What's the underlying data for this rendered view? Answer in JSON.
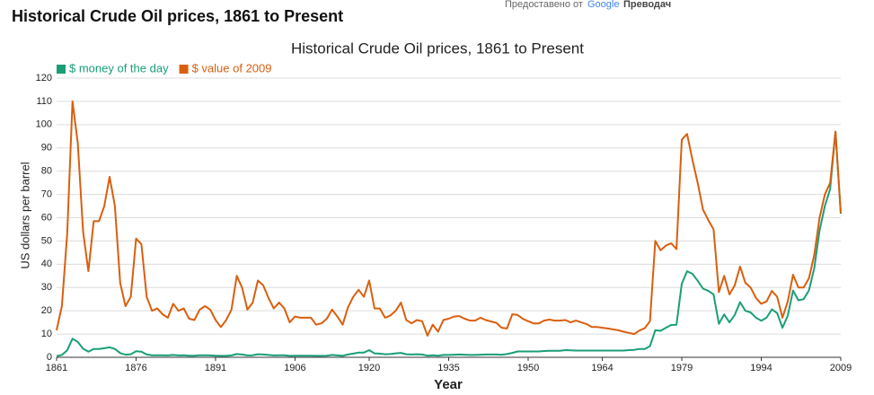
{
  "header": {
    "title": "Historical Crude Oil prices, 1861 to Present",
    "translate_prefix": "Предоставено от",
    "translate_brand": "Google",
    "translate_product": "Преводач"
  },
  "chart_data": {
    "type": "line",
    "title": "Historical Crude Oil prices, 1861 to Present",
    "x_label": "Year",
    "y_label": "US dollars per barrel",
    "x": [
      1861,
      1862,
      1863,
      1864,
      1865,
      1866,
      1867,
      1868,
      1869,
      1870,
      1871,
      1872,
      1873,
      1874,
      1875,
      1876,
      1877,
      1878,
      1879,
      1880,
      1881,
      1882,
      1883,
      1884,
      1885,
      1886,
      1887,
      1888,
      1889,
      1890,
      1891,
      1892,
      1893,
      1894,
      1895,
      1896,
      1897,
      1898,
      1899,
      1900,
      1901,
      1902,
      1903,
      1904,
      1905,
      1906,
      1907,
      1908,
      1909,
      1910,
      1911,
      1912,
      1913,
      1914,
      1915,
      1916,
      1917,
      1918,
      1919,
      1920,
      1921,
      1922,
      1923,
      1924,
      1925,
      1926,
      1927,
      1928,
      1929,
      1930,
      1931,
      1932,
      1933,
      1934,
      1935,
      1936,
      1937,
      1938,
      1939,
      1940,
      1941,
      1942,
      1943,
      1944,
      1945,
      1946,
      1947,
      1948,
      1949,
      1950,
      1951,
      1952,
      1953,
      1954,
      1955,
      1956,
      1957,
      1958,
      1959,
      1960,
      1961,
      1962,
      1963,
      1964,
      1965,
      1966,
      1967,
      1968,
      1969,
      1970,
      1971,
      1972,
      1973,
      1974,
      1975,
      1976,
      1977,
      1978,
      1979,
      1980,
      1981,
      1982,
      1983,
      1984,
      1985,
      1986,
      1987,
      1988,
      1989,
      1990,
      1991,
      1992,
      1993,
      1994,
      1995,
      1996,
      1997,
      1998,
      1999,
      2000,
      2001,
      2002,
      2003,
      2004,
      2005,
      2006,
      2007,
      2008,
      2009
    ],
    "series": [
      {
        "name": "$ money of the day",
        "color": "#1a9e77",
        "values": [
          0.5,
          1,
          3,
          8,
          6.6,
          3.7,
          2.4,
          3.6,
          3.6,
          3.9,
          4.3,
          3.6,
          1.8,
          1.1,
          1.3,
          2.6,
          2.4,
          1.2,
          0.9,
          0.9,
          0.9,
          0.8,
          1,
          0.8,
          0.9,
          0.7,
          0.7,
          0.9,
          0.9,
          0.8,
          0.7,
          0.6,
          0.6,
          0.8,
          1.4,
          1.2,
          0.8,
          0.9,
          1.3,
          1.2,
          1,
          0.8,
          0.9,
          0.9,
          0.6,
          0.7,
          0.7,
          0.7,
          0.7,
          0.6,
          0.6,
          0.7,
          1,
          0.8,
          0.6,
          1.2,
          1.6,
          2,
          2,
          3.1,
          1.7,
          1.6,
          1.3,
          1.4,
          1.7,
          1.9,
          1.3,
          1.2,
          1.3,
          1.2,
          0.7,
          0.9,
          0.7,
          1,
          1,
          1.1,
          1.2,
          1.1,
          1,
          1,
          1.1,
          1.2,
          1.2,
          1.2,
          1.1,
          1.4,
          1.9,
          2.5,
          2.5,
          2.5,
          2.5,
          2.5,
          2.7,
          2.8,
          2.8,
          2.8,
          3.1,
          3,
          2.9,
          2.9,
          2.9,
          2.9,
          2.9,
          2.9,
          2.9,
          2.9,
          2.9,
          2.9,
          3.1,
          3.2,
          3.6,
          3.6,
          4.8,
          11.6,
          11.4,
          12.7,
          13.9,
          14,
          31.6,
          37,
          35.9,
          32.9,
          29.5,
          28.6,
          27,
          14.4,
          18.4,
          15,
          18.2,
          23.7,
          20,
          19.3,
          17,
          15.7,
          17,
          20.6,
          19,
          12.7,
          17.9,
          28.7,
          24.5,
          25,
          28.8,
          38.3,
          54.5,
          65,
          72.4,
          97,
          61.7
        ]
      },
      {
        "name": "$ value of 2009",
        "color": "#d95f0e",
        "values": [
          11.6,
          22,
          53,
          110,
          92,
          54,
          37,
          58.5,
          58.5,
          65,
          77.6,
          65,
          32,
          22,
          26,
          51,
          48.6,
          26,
          20,
          21,
          18.5,
          17,
          23,
          20,
          21,
          16.6,
          16,
          20.5,
          22,
          20.5,
          16,
          13,
          16,
          20.5,
          35,
          30,
          20.5,
          23.5,
          33,
          31,
          25.5,
          21,
          23.5,
          21,
          15,
          17.5,
          17,
          17,
          17,
          14,
          14.6,
          16.6,
          20.5,
          17.5,
          14,
          21.5,
          26,
          29,
          26,
          33,
          21,
          21,
          17,
          18,
          20,
          23.5,
          16,
          14.6,
          16,
          15.5,
          9.3,
          14,
          11,
          16,
          16.6,
          17.5,
          17.7,
          16.6,
          15.8,
          15.8,
          17,
          16,
          15.4,
          14.8,
          12.7,
          12.4,
          18.5,
          18.2,
          16.5,
          15.5,
          14.6,
          14.6,
          15.8,
          16.2,
          15.8,
          15.8,
          16,
          15,
          15.8,
          15,
          14.3,
          13,
          13,
          12.7,
          12.4,
          12,
          11.6,
          11,
          10.5,
          10,
          11.5,
          12.5,
          15.5,
          50,
          46,
          48,
          49,
          46.5,
          93.5,
          96,
          85,
          75,
          63.5,
          59,
          55,
          28,
          35,
          27,
          31,
          39,
          32,
          30,
          25.5,
          23,
          24,
          28.5,
          26,
          17,
          24,
          35.5,
          30,
          30,
          34,
          44,
          60,
          70,
          75,
          97,
          62
        ]
      }
    ],
    "xlim": [
      1861,
      2009
    ],
    "xticks": [
      1861,
      1876,
      1891,
      1906,
      1920,
      1935,
      1950,
      1964,
      1979,
      1994,
      2009
    ],
    "ylim": [
      0,
      120
    ],
    "yticks": [
      0,
      10,
      20,
      30,
      40,
      50,
      60,
      70,
      80,
      90,
      100,
      110,
      120
    ],
    "grid": true,
    "legend": "top-left"
  }
}
